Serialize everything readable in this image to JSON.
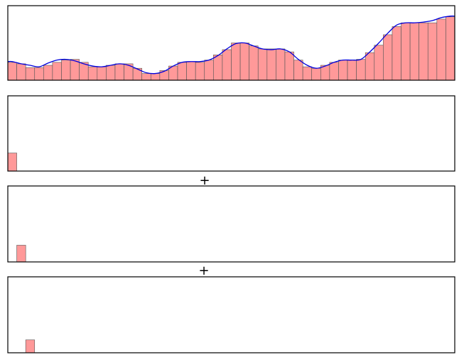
{
  "colors": {
    "bar_fill": "#ff9999",
    "bar_edge": "#555555",
    "curve": "#0000dd",
    "frame": "#000000",
    "background": "#ffffff"
  },
  "operators": [
    "+",
    "+"
  ],
  "chart_data": [
    {
      "type": "bar",
      "title": "",
      "xlabel": "",
      "ylabel": "",
      "xlim": [
        0,
        50
      ],
      "ylim": [
        0,
        1
      ],
      "grid": false,
      "legend": "none",
      "values": [
        0.24,
        0.22,
        0.17,
        0.17,
        0.2,
        0.24,
        0.27,
        0.28,
        0.24,
        0.18,
        0.18,
        0.2,
        0.22,
        0.22,
        0.16,
        0.09,
        0.09,
        0.13,
        0.19,
        0.24,
        0.25,
        0.24,
        0.27,
        0.34,
        0.41,
        0.5,
        0.5,
        0.46,
        0.42,
        0.42,
        0.42,
        0.38,
        0.27,
        0.18,
        0.16,
        0.2,
        0.24,
        0.27,
        0.27,
        0.28,
        0.37,
        0.47,
        0.61,
        0.72,
        0.77,
        0.77,
        0.77,
        0.77,
        0.82,
        0.85
      ],
      "overlay_curve": [
        0.25,
        0.22,
        0.2,
        0.18,
        0.23,
        0.27,
        0.28,
        0.26,
        0.22,
        0.19,
        0.18,
        0.2,
        0.22,
        0.2,
        0.15,
        0.1,
        0.09,
        0.12,
        0.19,
        0.24,
        0.25,
        0.25,
        0.27,
        0.33,
        0.42,
        0.49,
        0.5,
        0.46,
        0.42,
        0.41,
        0.42,
        0.38,
        0.28,
        0.2,
        0.16,
        0.19,
        0.24,
        0.27,
        0.27,
        0.28,
        0.38,
        0.5,
        0.63,
        0.74,
        0.77,
        0.77,
        0.78,
        0.8,
        0.84,
        0.86
      ]
    },
    {
      "type": "bar",
      "title": "",
      "xlabel": "",
      "ylabel": "",
      "xlim": [
        0,
        50
      ],
      "ylim": [
        0,
        1
      ],
      "grid": false,
      "legend": "none",
      "bars": [
        {
          "index": 0,
          "value": 0.24
        }
      ]
    },
    {
      "type": "bar",
      "title": "",
      "xlabel": "",
      "ylabel": "",
      "xlim": [
        0,
        50
      ],
      "ylim": [
        0,
        1
      ],
      "grid": false,
      "legend": "none",
      "bars": [
        {
          "index": 1,
          "value": 0.22
        }
      ]
    },
    {
      "type": "bar",
      "title": "",
      "xlabel": "",
      "ylabel": "",
      "xlim": [
        0,
        50
      ],
      "ylim": [
        0,
        1
      ],
      "grid": false,
      "legend": "none",
      "bars": [
        {
          "index": 2,
          "value": 0.17
        }
      ]
    }
  ]
}
